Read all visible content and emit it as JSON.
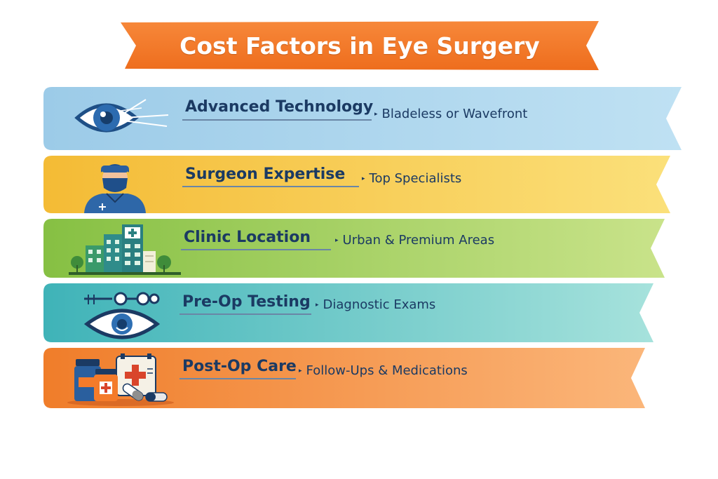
{
  "title": "Cost Factors in Eye Surgery",
  "factors": [
    {
      "heading": "Advanced Technology",
      "detail": "Bladeless or Wavefront",
      "icon": "eye-laser-icon"
    },
    {
      "heading": "Surgeon Expertise",
      "detail": "Top Specialists",
      "icon": "surgeon-icon"
    },
    {
      "heading": "Clinic Location",
      "detail": "Urban & Premium Areas",
      "icon": "clinic-building-icon"
    },
    {
      "heading": "Pre-Op Testing",
      "detail": "Diagnostic Exams",
      "icon": "eye-exam-icon"
    },
    {
      "heading": "Post-Op Care",
      "detail": "Follow-Ups & Medications",
      "icon": "medications-icon"
    }
  ],
  "colors": {
    "title_banner": "#f47b2a",
    "band_technology": "#a9d3ec",
    "band_expertise": "#f8c94a",
    "band_location": "#9fcd55",
    "band_testing": "#5fc3c6",
    "band_care": "#f5923e",
    "text": "#1b3a63"
  }
}
